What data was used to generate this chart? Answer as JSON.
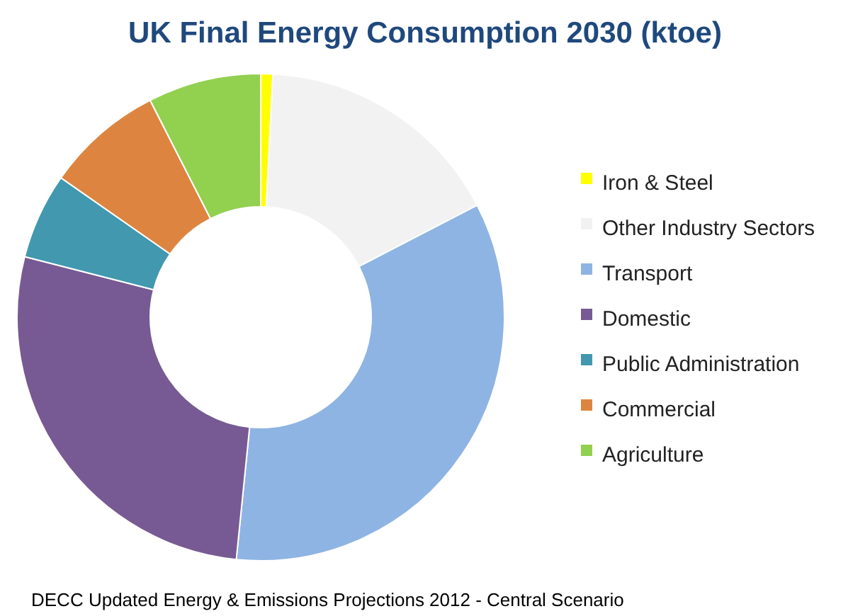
{
  "chart_data": {
    "type": "donut",
    "title": "UK Final Energy Consumption 2030 (ktoe)",
    "categories": [
      "Iron & Steel",
      "Other Industry Sectors",
      "Transport",
      "Domestic",
      "Public Administration",
      "Commercial",
      "Agriculture"
    ],
    "values": [
      0.8,
      16.6,
      34.2,
      27.4,
      5.7,
      7.8,
      7.5
    ],
    "colors": [
      "#ffff00",
      "#f2f2f2",
      "#8eb4e3",
      "#775a93",
      "#4198af",
      "#dd8540",
      "#92d050"
    ],
    "legend": "right",
    "annotations": [
      "DECC Updated Energy & Emissions Projections 2012 - Central Scenario"
    ]
  }
}
